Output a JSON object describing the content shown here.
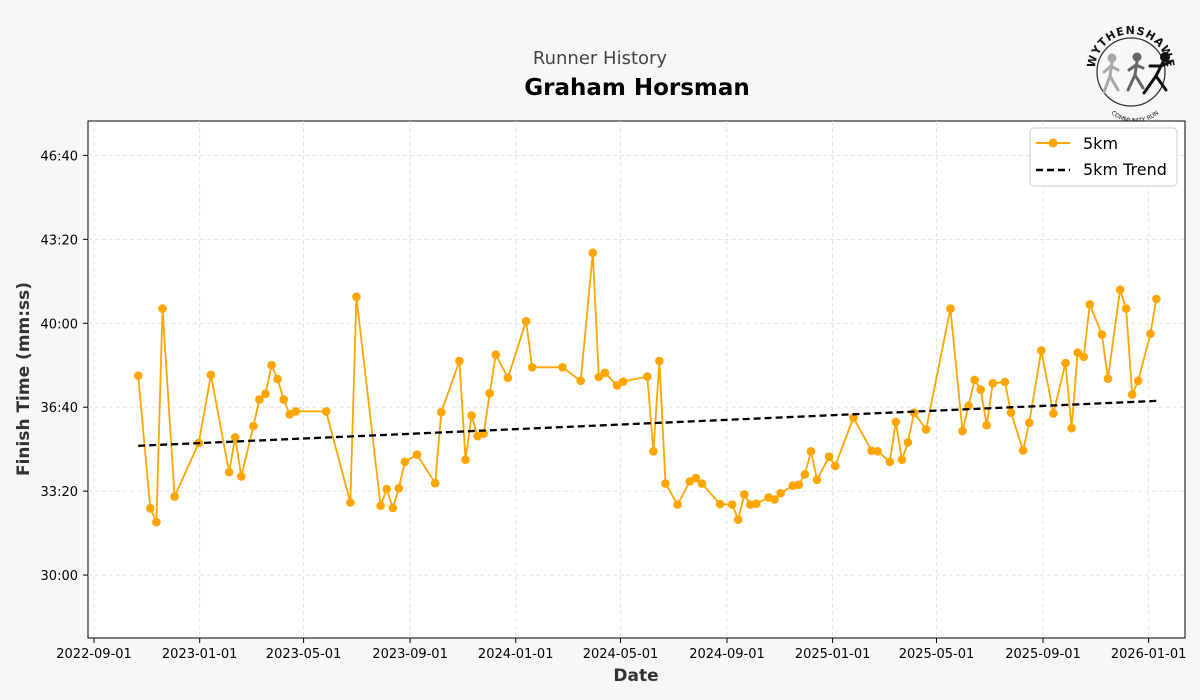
{
  "page": {
    "subtitle": "Runner History",
    "title": "Graham Horsman"
  },
  "logo": {
    "arc_text": "WYTHENSHAWE",
    "bottom_text": "COMMUNITY RUN",
    "icon": "runners-logo"
  },
  "chart_data": {
    "type": "line",
    "xlabel": "Date",
    "ylabel": "Finish Time (mm:ss)",
    "x_ticks": [
      "2022-09-01",
      "2023-01-01",
      "2023-05-01",
      "2023-09-01",
      "2024-01-01",
      "2024-05-01",
      "2024-09-01",
      "2025-01-01",
      "2025-05-01",
      "2025-09-01",
      "2026-01-01"
    ],
    "y_ticks": [
      "30:00",
      "33:20",
      "36:40",
      "40:00",
      "43:20",
      "46:40"
    ],
    "xlim": [
      "2022-08-25",
      "2026-02-12"
    ],
    "ylim_seconds": [
      1650,
      2882
    ],
    "grid": true,
    "legend_position": "top-right",
    "colors": {
      "series": "#FFA500",
      "trend": "#000000",
      "grid": "#dddddd",
      "plot_bg": "#ffffff",
      "page_bg": "#f7f7f7"
    },
    "series": [
      {
        "name": "5km",
        "style": "line-with-markers",
        "points": [
          [
            "2022-10-22",
            "37:55"
          ],
          [
            "2022-11-05",
            "32:39"
          ],
          [
            "2022-11-12",
            "32:06"
          ],
          [
            "2022-11-19",
            "40:35"
          ],
          [
            "2022-12-03",
            "33:07"
          ],
          [
            "2022-12-31",
            "35:15"
          ],
          [
            "2023-01-14",
            "37:57"
          ],
          [
            "2023-02-04",
            "34:05"
          ],
          [
            "2023-02-11",
            "35:28"
          ],
          [
            "2023-02-18",
            "33:55"
          ],
          [
            "2023-03-04",
            "35:55"
          ],
          [
            "2023-03-11",
            "36:58"
          ],
          [
            "2023-03-18",
            "37:12"
          ],
          [
            "2023-03-25",
            "38:20"
          ],
          [
            "2023-04-01",
            "37:47"
          ],
          [
            "2023-04-08",
            "36:58"
          ],
          [
            "2023-04-15",
            "36:23"
          ],
          [
            "2023-04-22",
            "36:30"
          ],
          [
            "2023-05-27",
            "36:30"
          ],
          [
            "2023-06-24",
            "32:53"
          ],
          [
            "2023-07-01",
            "41:03"
          ],
          [
            "2023-07-29",
            "32:45"
          ],
          [
            "2023-08-05",
            "33:25"
          ],
          [
            "2023-08-12",
            "32:40"
          ],
          [
            "2023-08-19",
            "33:27"
          ],
          [
            "2023-08-26",
            "34:30"
          ],
          [
            "2023-09-09",
            "34:47"
          ],
          [
            "2023-09-30",
            "33:39"
          ],
          [
            "2023-10-07",
            "36:28"
          ],
          [
            "2023-10-28",
            "38:30"
          ],
          [
            "2023-11-04",
            "34:35"
          ],
          [
            "2023-11-11",
            "36:20"
          ],
          [
            "2023-11-18",
            "35:31"
          ],
          [
            "2023-11-25",
            "35:37"
          ],
          [
            "2023-12-02",
            "37:13"
          ],
          [
            "2023-12-09",
            "38:45"
          ],
          [
            "2023-12-23",
            "37:50"
          ],
          [
            "2024-01-13",
            "40:05"
          ],
          [
            "2024-01-20",
            "38:15"
          ],
          [
            "2024-02-24",
            "38:15"
          ],
          [
            "2024-03-16",
            "37:43"
          ],
          [
            "2024-03-30",
            "42:48"
          ],
          [
            "2024-04-06",
            "37:52"
          ],
          [
            "2024-04-13",
            "38:02"
          ],
          [
            "2024-04-27",
            "37:32"
          ],
          [
            "2024-05-04",
            "37:41"
          ],
          [
            "2024-06-01",
            "37:53"
          ],
          [
            "2024-06-08",
            "34:55"
          ],
          [
            "2024-06-15",
            "38:30"
          ],
          [
            "2024-06-22",
            "33:38"
          ],
          [
            "2024-07-06",
            "32:48"
          ],
          [
            "2024-07-20",
            "33:43"
          ],
          [
            "2024-07-27",
            "33:51"
          ],
          [
            "2024-08-03",
            "33:38"
          ],
          [
            "2024-08-24",
            "32:49"
          ],
          [
            "2024-09-07",
            "32:48"
          ],
          [
            "2024-09-14",
            "32:12"
          ],
          [
            "2024-09-21",
            "33:12"
          ],
          [
            "2024-09-28",
            "32:48"
          ],
          [
            "2024-10-05",
            "32:50"
          ],
          [
            "2024-10-19",
            "33:05"
          ],
          [
            "2024-10-26",
            "33:00"
          ],
          [
            "2024-11-02",
            "33:15"
          ],
          [
            "2024-11-16",
            "33:33"
          ],
          [
            "2024-11-23",
            "33:35"
          ],
          [
            "2024-11-30",
            "34:00"
          ],
          [
            "2024-12-07",
            "34:55"
          ],
          [
            "2024-12-14",
            "33:47"
          ],
          [
            "2024-12-28",
            "34:42"
          ],
          [
            "2025-01-04",
            "34:20"
          ],
          [
            "2025-01-25",
            "36:15"
          ],
          [
            "2025-02-15",
            "34:56"
          ],
          [
            "2025-02-22",
            "34:55"
          ],
          [
            "2025-03-08",
            "34:30"
          ],
          [
            "2025-03-15",
            "36:05"
          ],
          [
            "2025-03-22",
            "34:35"
          ],
          [
            "2025-03-29",
            "35:16"
          ],
          [
            "2025-04-05",
            "36:27"
          ],
          [
            "2025-04-19",
            "35:47"
          ],
          [
            "2025-05-17",
            "40:35"
          ],
          [
            "2025-05-31",
            "35:43"
          ],
          [
            "2025-06-07",
            "36:43"
          ],
          [
            "2025-06-14",
            "37:45"
          ],
          [
            "2025-06-21",
            "37:22"
          ],
          [
            "2025-06-28",
            "35:57"
          ],
          [
            "2025-07-05",
            "37:37"
          ],
          [
            "2025-07-19",
            "37:40"
          ],
          [
            "2025-07-26",
            "36:27"
          ],
          [
            "2025-08-09",
            "34:57"
          ],
          [
            "2025-08-16",
            "36:03"
          ],
          [
            "2025-08-30",
            "38:55"
          ],
          [
            "2025-09-13",
            "36:25"
          ],
          [
            "2025-09-27",
            "38:25"
          ],
          [
            "2025-10-04",
            "35:50"
          ],
          [
            "2025-10-11",
            "38:50"
          ],
          [
            "2025-10-18",
            "38:40"
          ],
          [
            "2025-10-25",
            "40:45"
          ],
          [
            "2025-11-08",
            "39:33"
          ],
          [
            "2025-11-15",
            "37:48"
          ],
          [
            "2025-11-29",
            "41:20"
          ],
          [
            "2025-12-06",
            "40:35"
          ],
          [
            "2025-12-13",
            "37:10"
          ],
          [
            "2025-12-20",
            "37:43"
          ],
          [
            "2026-01-03",
            "39:35"
          ],
          [
            "2026-01-10",
            "40:58"
          ]
        ]
      },
      {
        "name": "5km Trend",
        "style": "dashed",
        "points": [
          [
            "2022-10-22",
            "35:08"
          ],
          [
            "2026-01-10",
            "36:55"
          ]
        ]
      }
    ]
  }
}
